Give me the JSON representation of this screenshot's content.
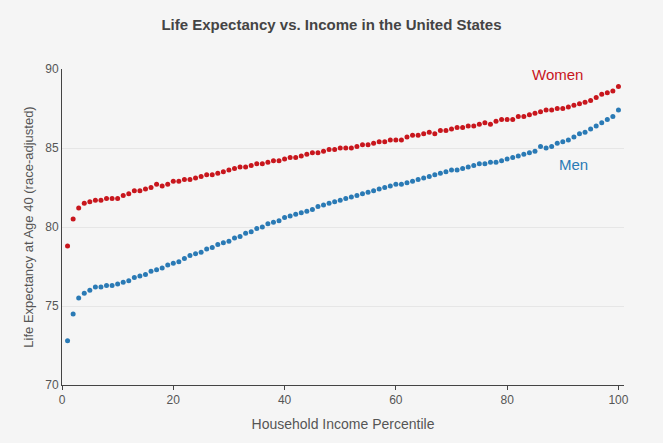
{
  "chart_data": {
    "type": "scatter",
    "title": "Life Expectancy vs. Income in the United States",
    "x_label": "Household Income Percentile",
    "y_label": "Life Expectancy at Age 40 (race-adjusted)",
    "xlim": [
      0,
      101
    ],
    "xticks": [
      0,
      20,
      40,
      60,
      80,
      100
    ],
    "ylim": [
      70,
      90
    ],
    "yticks": [
      70,
      75,
      80,
      85,
      90
    ],
    "grid": true,
    "marker": "circle",
    "x": [
      1,
      2,
      3,
      4,
      5,
      6,
      7,
      8,
      9,
      10,
      11,
      12,
      13,
      14,
      15,
      16,
      17,
      18,
      19,
      20,
      21,
      22,
      23,
      24,
      25,
      26,
      27,
      28,
      29,
      30,
      31,
      32,
      33,
      34,
      35,
      36,
      37,
      38,
      39,
      40,
      41,
      42,
      43,
      44,
      45,
      46,
      47,
      48,
      49,
      50,
      51,
      52,
      53,
      54,
      55,
      56,
      57,
      58,
      59,
      60,
      61,
      62,
      63,
      64,
      65,
      66,
      67,
      68,
      69,
      70,
      71,
      72,
      73,
      74,
      75,
      76,
      77,
      78,
      79,
      80,
      81,
      82,
      83,
      84,
      85,
      86,
      87,
      88,
      89,
      90,
      91,
      92,
      93,
      94,
      95,
      96,
      97,
      98,
      99,
      100
    ],
    "series": [
      {
        "name": "Women",
        "color": "#c8161d",
        "values": [
          78.8,
          80.5,
          81.2,
          81.5,
          81.6,
          81.7,
          81.7,
          81.8,
          81.8,
          81.8,
          82.0,
          82.1,
          82.3,
          82.3,
          82.4,
          82.5,
          82.7,
          82.6,
          82.7,
          82.9,
          82.9,
          83.0,
          83.0,
          83.1,
          83.2,
          83.3,
          83.3,
          83.4,
          83.5,
          83.6,
          83.7,
          83.8,
          83.8,
          83.9,
          84.0,
          84.0,
          84.1,
          84.2,
          84.2,
          84.3,
          84.4,
          84.4,
          84.5,
          84.6,
          84.7,
          84.7,
          84.8,
          84.9,
          84.9,
          85.0,
          85.0,
          85.0,
          85.1,
          85.2,
          85.2,
          85.3,
          85.4,
          85.4,
          85.5,
          85.5,
          85.5,
          85.7,
          85.8,
          85.8,
          85.9,
          86.0,
          85.9,
          86.1,
          86.1,
          86.2,
          86.3,
          86.3,
          86.4,
          86.4,
          86.5,
          86.6,
          86.5,
          86.7,
          86.8,
          86.8,
          86.8,
          87.0,
          87.0,
          87.1,
          87.2,
          87.3,
          87.4,
          87.4,
          87.5,
          87.5,
          87.6,
          87.7,
          87.8,
          87.9,
          88.0,
          88.2,
          88.4,
          88.5,
          88.6,
          88.9
        ]
      },
      {
        "name": "Men",
        "color": "#2a7ab5",
        "values": [
          72.8,
          74.5,
          75.5,
          75.8,
          76.0,
          76.2,
          76.2,
          76.3,
          76.3,
          76.4,
          76.5,
          76.6,
          76.8,
          76.9,
          77.0,
          77.2,
          77.3,
          77.4,
          77.6,
          77.7,
          77.8,
          78.0,
          78.2,
          78.3,
          78.4,
          78.6,
          78.7,
          78.9,
          79.0,
          79.1,
          79.3,
          79.4,
          79.6,
          79.7,
          79.9,
          80.0,
          80.2,
          80.3,
          80.4,
          80.6,
          80.7,
          80.8,
          80.9,
          81.0,
          81.1,
          81.3,
          81.4,
          81.5,
          81.6,
          81.7,
          81.8,
          81.9,
          82.0,
          82.1,
          82.2,
          82.3,
          82.4,
          82.5,
          82.6,
          82.7,
          82.7,
          82.8,
          82.9,
          83.0,
          83.1,
          83.2,
          83.3,
          83.4,
          83.5,
          83.6,
          83.6,
          83.7,
          83.8,
          83.9,
          84.0,
          84.0,
          84.1,
          84.1,
          84.2,
          84.3,
          84.4,
          84.5,
          84.6,
          84.7,
          84.8,
          85.1,
          85.0,
          85.1,
          85.3,
          85.4,
          85.5,
          85.7,
          85.9,
          86.0,
          86.2,
          86.4,
          86.6,
          86.8,
          87.0,
          87.4
        ]
      }
    ]
  }
}
